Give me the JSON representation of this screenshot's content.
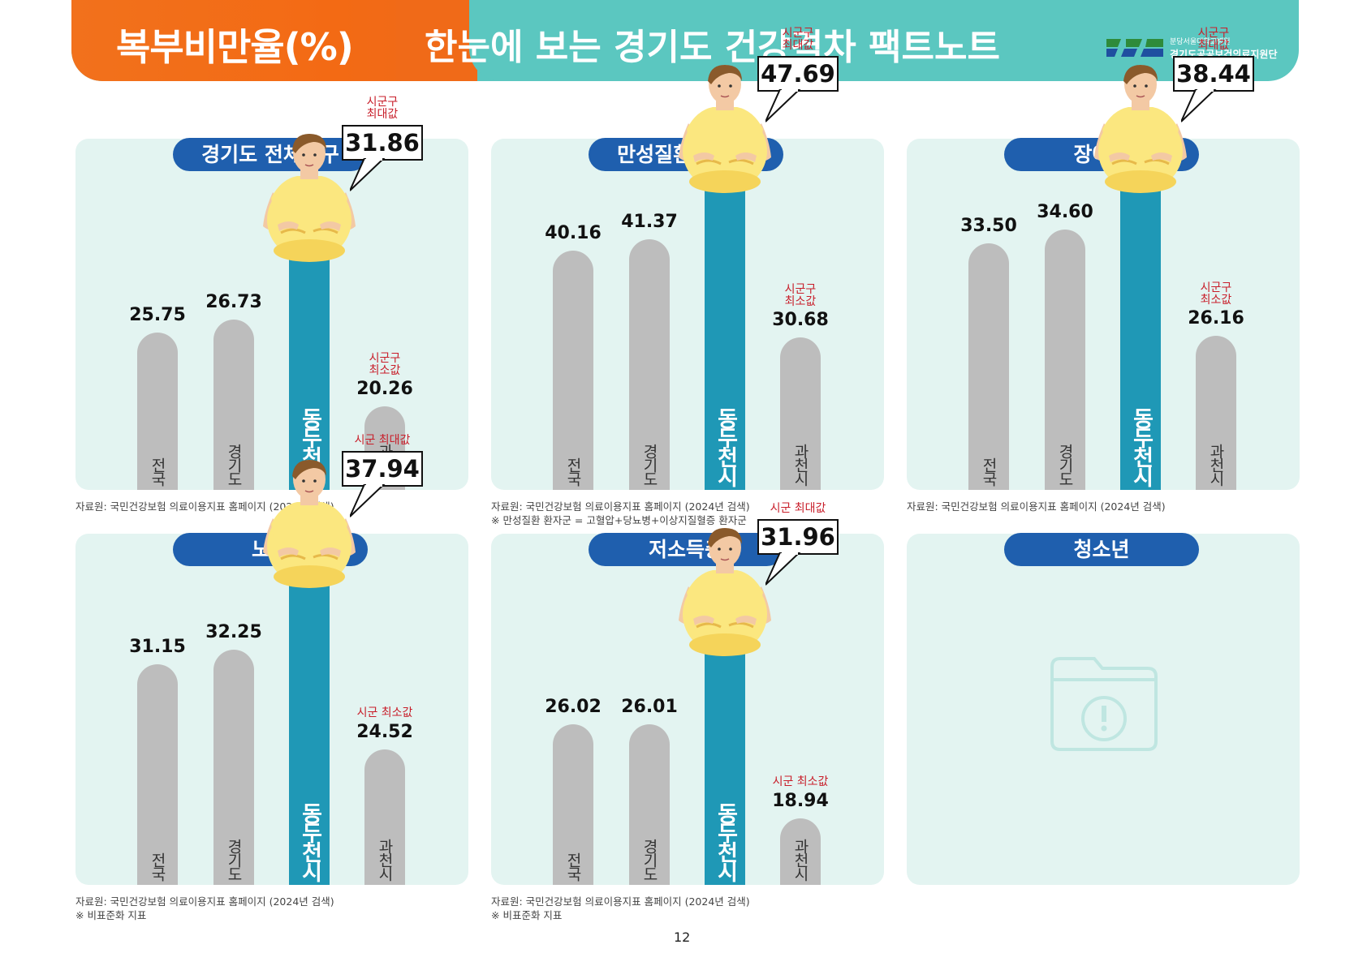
{
  "header": {
    "section_title": "복부비만율(%)",
    "main_title": "한눈에 보는 경기도 건강격차 팩트노트",
    "org_line1": "분당서울대학교병원",
    "org_line2": "경기도공공보건의료지원단"
  },
  "colors": {
    "orange": "#f2711c",
    "teal_header": "#5bc7c0",
    "pill_blue": "#1f5fae",
    "highlight_bar": "#1f98b6",
    "gray_bar": "#bdbdbd",
    "panel_bg": "#e3f4f1",
    "label_red": "#c81e2a"
  },
  "chart_data": [
    {
      "type": "bar",
      "title": "경기도 전체인구",
      "categories": [
        "전국",
        "경기도",
        "동두천시",
        "과천시"
      ],
      "values": [
        25.75,
        26.73,
        31.86,
        20.26
      ],
      "highlight_index": 2,
      "max_label": "시군구\n최대값",
      "min_label": "시군구\n최소값",
      "value_texts": [
        "25.75",
        "26.73",
        "31.86",
        "20.26"
      ],
      "notes": [
        "자료원: 국민건강보험 의료이용지표 홈페이지 (2024년 검색)"
      ]
    },
    {
      "type": "bar",
      "title": "만성질환 환자군",
      "categories": [
        "전국",
        "경기도",
        "동두천시",
        "과천시"
      ],
      "values": [
        40.16,
        41.37,
        47.69,
        30.68
      ],
      "highlight_index": 2,
      "max_label": "시군구\n최대값",
      "min_label": "시군구\n최소값",
      "value_texts": [
        "40.16",
        "41.37",
        "47.69",
        "30.68"
      ],
      "notes": [
        "자료원: 국민건강보험 의료이용지표 홈페이지 (2024년 검색)",
        "※ 만성질환 환자군 = 고혈압+당뇨병+이상지질혈증 환자군"
      ]
    },
    {
      "type": "bar",
      "title": "장애인",
      "categories": [
        "전국",
        "경기도",
        "동두천시",
        "과천시"
      ],
      "values": [
        33.5,
        34.6,
        38.44,
        26.16
      ],
      "highlight_index": 2,
      "max_label": "시군구\n최대값",
      "min_label": "시군구\n최소값",
      "value_texts": [
        "33.50",
        "34.60",
        "38.44",
        "26.16"
      ],
      "notes": [
        "자료원: 국민건강보험 의료이용지표 홈페이지 (2024년 검색)"
      ]
    },
    {
      "type": "bar",
      "title": "노인",
      "categories": [
        "전국",
        "경기도",
        "동두천시",
        "과천시"
      ],
      "values": [
        31.15,
        32.25,
        37.94,
        24.52
      ],
      "highlight_index": 2,
      "max_label": "시군 최대값",
      "min_label": "시군 최소값",
      "value_texts": [
        "31.15",
        "32.25",
        "37.94",
        "24.52"
      ],
      "notes": [
        "자료원: 국민건강보험 의료이용지표 홈페이지 (2024년 검색)",
        "※ 비표준화 지표"
      ]
    },
    {
      "type": "bar",
      "title": "저소득층",
      "categories": [
        "전국",
        "경기도",
        "동두천시",
        "과천시"
      ],
      "values": [
        26.02,
        26.01,
        31.96,
        18.94
      ],
      "highlight_index": 2,
      "max_label": "시군 최대값",
      "min_label": "시군 최소값",
      "value_texts": [
        "26.02",
        "26.01",
        "31.96",
        "18.94"
      ],
      "notes": [
        "자료원: 국민건강보험 의료이용지표 홈페이지 (2024년 검색)",
        "※ 비표준화 지표"
      ]
    },
    {
      "type": "bar",
      "title": "청소년",
      "categories": [],
      "values": [],
      "icon": "folder-alert-icon",
      "notes": []
    }
  ],
  "footer": {
    "page_number": "12"
  }
}
